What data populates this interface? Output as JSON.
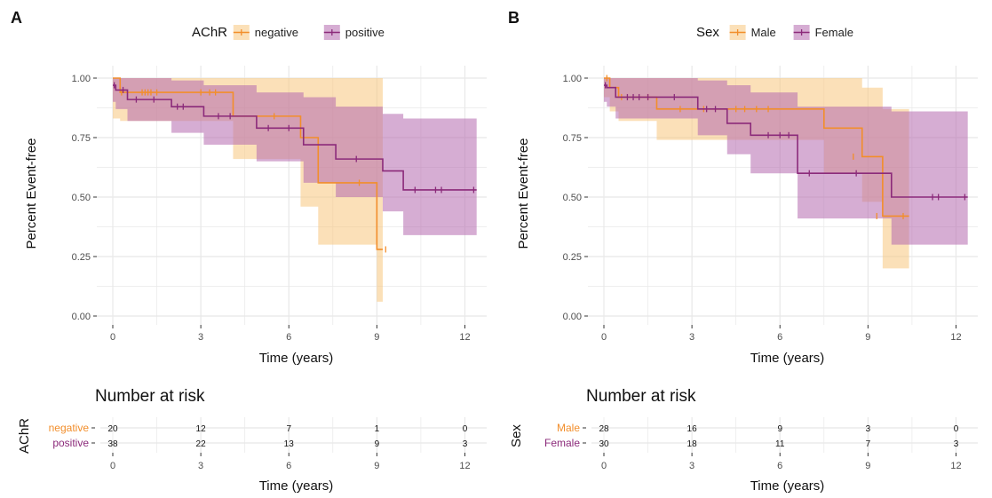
{
  "colors": {
    "negative": "#f28e2b",
    "positive": "#8b2a7a",
    "band_negative": "#f7c77e",
    "band_positive": "#b46aae",
    "grid": "#e8e8e8",
    "axis_text": "#4d4d4d"
  },
  "chart_data": [
    {
      "panel": "A",
      "type": "line",
      "title": "",
      "legend_title": "AChR",
      "legend_position": "top",
      "xlabel": "Time (years)",
      "ylabel": "Percent Event-free",
      "xlim": [
        0,
        12.5
      ],
      "ylim": [
        0,
        1
      ],
      "xticks": [
        "0",
        "3",
        "6",
        "9",
        "12"
      ],
      "yticks": [
        "0.00",
        "0.25",
        "0.50",
        "0.75",
        "1.00"
      ],
      "grid": true,
      "series": [
        {
          "name": "negative",
          "color": "#f28e2b",
          "x": [
            0,
            0.25,
            4.1,
            6.4,
            7.0,
            9.0,
            9.2
          ],
          "y": [
            1.0,
            0.94,
            0.84,
            0.75,
            0.56,
            0.28,
            0.28
          ],
          "ci_lower": [
            0.83,
            0.82,
            0.66,
            0.46,
            0.3,
            0.06,
            0.06
          ],
          "ci_upper": [
            1.0,
            1.0,
            1.0,
            1.0,
            1.0,
            1.0,
            1.0
          ],
          "censor_x": [
            0.3,
            1.0,
            1.1,
            1.2,
            1.3,
            1.5,
            3.0,
            3.3,
            3.5,
            5.5,
            8.4,
            9.3
          ],
          "censor_y": [
            0.94,
            0.94,
            0.94,
            0.94,
            0.94,
            0.94,
            0.94,
            0.94,
            0.94,
            0.84,
            0.56,
            0.28
          ]
        },
        {
          "name": "positive",
          "color": "#8b2a7a",
          "x": [
            0,
            0.1,
            0.5,
            2.0,
            3.1,
            4.9,
            6.5,
            7.6,
            9.2,
            9.9,
            12.4
          ],
          "y": [
            0.97,
            0.95,
            0.91,
            0.88,
            0.84,
            0.79,
            0.72,
            0.66,
            0.61,
            0.53,
            0.53
          ],
          "ci_lower": [
            0.9,
            0.87,
            0.82,
            0.77,
            0.72,
            0.65,
            0.56,
            0.5,
            0.44,
            0.34,
            0.34
          ],
          "ci_upper": [
            1.0,
            1.0,
            1.0,
            0.99,
            0.97,
            0.94,
            0.92,
            0.88,
            0.85,
            0.83,
            0.83
          ],
          "censor_x": [
            0.05,
            0.35,
            0.8,
            1.4,
            2.2,
            2.4,
            3.6,
            4.0,
            5.3,
            6.0,
            8.3,
            10.3,
            11.0,
            11.2,
            12.3
          ],
          "censor_y": [
            0.97,
            0.95,
            0.91,
            0.91,
            0.88,
            0.88,
            0.84,
            0.84,
            0.79,
            0.79,
            0.66,
            0.53,
            0.53,
            0.53,
            0.53
          ]
        }
      ],
      "risk_table": {
        "title": "Number at risk",
        "strata_label": "AChR",
        "times": [
          "0",
          "3",
          "6",
          "9",
          "12"
        ],
        "xlabel": "Time (years)",
        "rows": [
          {
            "name": "negative",
            "counts": [
              "20",
              "12",
              "7",
              "1",
              "0"
            ]
          },
          {
            "name": "positive",
            "counts": [
              "38",
              "22",
              "13",
              "9",
              "3"
            ]
          }
        ]
      }
    },
    {
      "panel": "B",
      "type": "line",
      "title": "",
      "legend_title": "Sex",
      "legend_position": "top",
      "xlabel": "Time (years)",
      "ylabel": "Percent Event-free",
      "xlim": [
        0,
        12.5
      ],
      "ylim": [
        0,
        1
      ],
      "xticks": [
        "0",
        "3",
        "6",
        "9",
        "12"
      ],
      "yticks": [
        "0.00",
        "0.25",
        "0.50",
        "0.75",
        "1.00"
      ],
      "grid": true,
      "series": [
        {
          "name": "Male",
          "color": "#f28e2b",
          "x": [
            0,
            0.2,
            0.5,
            1.8,
            3.0,
            6.7,
            7.5,
            8.8,
            9.5,
            10.4
          ],
          "y": [
            1.0,
            0.96,
            0.92,
            0.87,
            0.87,
            0.87,
            0.79,
            0.67,
            0.42,
            0.42
          ],
          "ci_lower": [
            0.92,
            0.86,
            0.82,
            0.74,
            0.74,
            0.74,
            0.6,
            0.48,
            0.2,
            0.2
          ],
          "ci_upper": [
            1.0,
            1.0,
            1.0,
            1.0,
            1.0,
            1.0,
            1.0,
            0.96,
            0.87,
            0.87
          ],
          "censor_x": [
            0.1,
            0.6,
            1.5,
            2.6,
            3.4,
            4.5,
            4.8,
            5.2,
            5.6,
            8.5,
            9.3,
            10.2
          ],
          "censor_y": [
            1.0,
            0.92,
            0.92,
            0.87,
            0.87,
            0.87,
            0.87,
            0.87,
            0.87,
            0.67,
            0.42,
            0.42
          ]
        },
        {
          "name": "Female",
          "color": "#8b2a7a",
          "x": [
            0,
            0.1,
            0.4,
            2.0,
            3.2,
            4.2,
            5.0,
            6.6,
            9.8,
            12.4
          ],
          "y": [
            0.97,
            0.96,
            0.92,
            0.92,
            0.87,
            0.81,
            0.76,
            0.6,
            0.5,
            0.5
          ],
          "ci_lower": [
            0.9,
            0.88,
            0.83,
            0.83,
            0.76,
            0.68,
            0.6,
            0.41,
            0.3,
            0.3
          ],
          "ci_upper": [
            1.0,
            1.0,
            1.0,
            1.0,
            0.99,
            0.97,
            0.94,
            0.88,
            0.86,
            0.86
          ],
          "censor_x": [
            0.05,
            0.8,
            1.0,
            1.2,
            1.5,
            2.4,
            3.5,
            3.8,
            5.6,
            6.0,
            6.3,
            7.0,
            8.6,
            11.2,
            11.4,
            12.3
          ],
          "censor_y": [
            0.97,
            0.92,
            0.92,
            0.92,
            0.92,
            0.92,
            0.87,
            0.87,
            0.76,
            0.76,
            0.76,
            0.6,
            0.6,
            0.5,
            0.5,
            0.5
          ]
        }
      ],
      "risk_table": {
        "title": "Number at risk",
        "strata_label": "Sex",
        "times": [
          "0",
          "3",
          "6",
          "9",
          "12"
        ],
        "xlabel": "Time (years)",
        "rows": [
          {
            "name": "Male",
            "counts": [
              "28",
              "16",
              "9",
              "3",
              "0"
            ]
          },
          {
            "name": "Female",
            "counts": [
              "30",
              "18",
              "11",
              "7",
              "3"
            ]
          }
        ]
      }
    }
  ]
}
